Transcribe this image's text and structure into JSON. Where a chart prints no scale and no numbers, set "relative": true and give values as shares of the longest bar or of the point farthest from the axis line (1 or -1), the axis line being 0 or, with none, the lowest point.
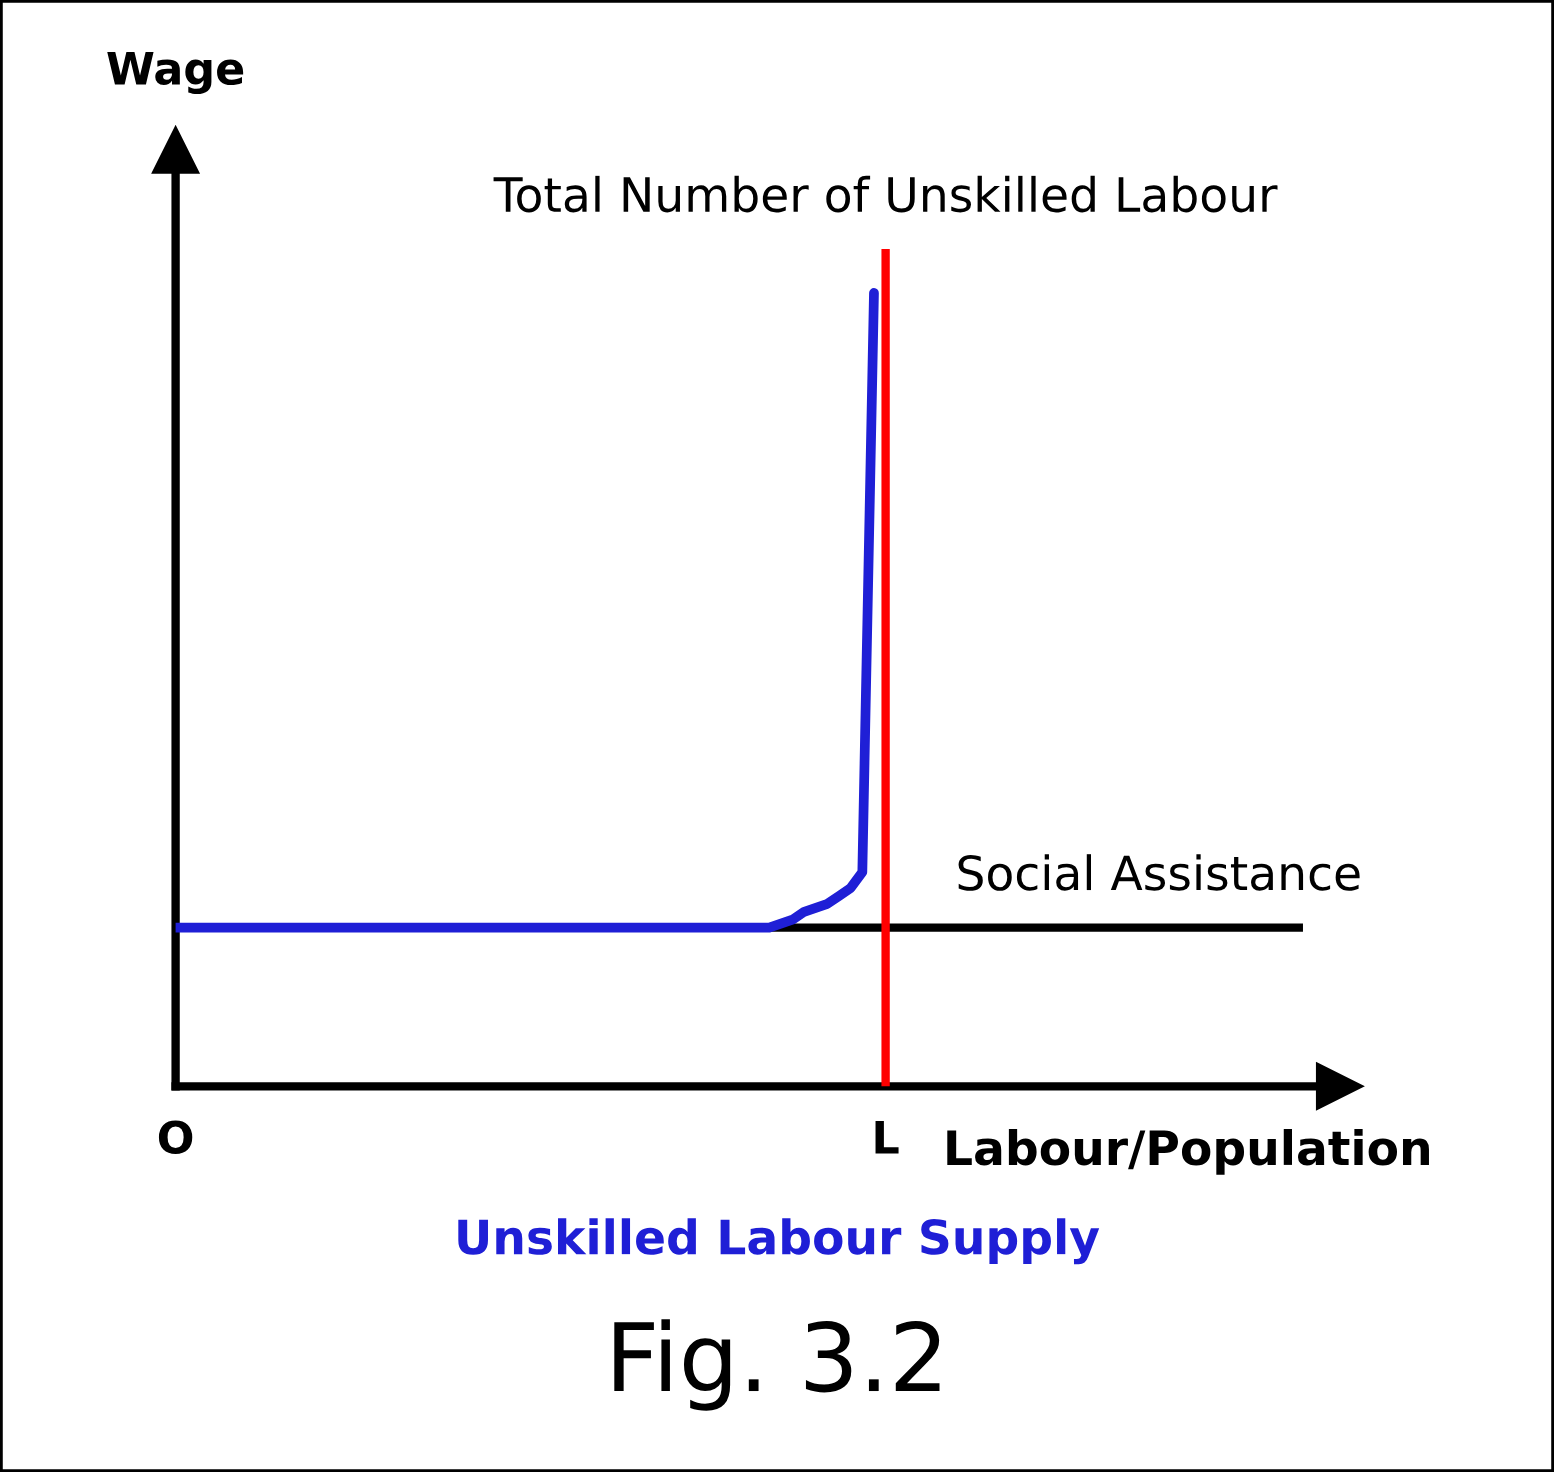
{
  "chart_data": {
    "type": "line",
    "relative": true,
    "title": "Fig. 3.2",
    "subtitle": "Unskilled Labour Supply",
    "xlabel": "Labour/Population",
    "ylabel": "Wage",
    "categories": [
      "O",
      null,
      null,
      null,
      null,
      null,
      null,
      null,
      null,
      null,
      null,
      null,
      null,
      null,
      null,
      null,
      null,
      null,
      null,
      null,
      null,
      null,
      null,
      null,
      null,
      null,
      null,
      null,
      null,
      null,
      null,
      null,
      null,
      null,
      null,
      null,
      null,
      null,
      null,
      null,
      null,
      null,
      null,
      null,
      null,
      null,
      null,
      null,
      null,
      null,
      null,
      null,
      null,
      null,
      null,
      null,
      null,
      null,
      null,
      null,
      null,
      "L",
      null,
      null,
      null,
      null,
      null,
      null,
      null,
      null,
      null,
      null,
      null,
      null,
      null,
      null,
      null,
      null,
      null,
      null,
      null,
      null,
      null,
      null,
      null,
      null,
      null,
      null,
      null,
      null,
      null,
      null,
      null,
      null,
      null,
      null,
      null,
      null,
      null,
      null,
      null
    ],
    "series": [
      {
        "color": "#1f1fd6",
        "values": [
          0.2,
          0.2,
          0.2,
          0.2,
          0.2,
          0.2,
          0.2,
          0.2,
          0.2,
          0.2,
          0.2,
          0.2,
          0.2,
          0.2,
          0.2,
          0.2,
          0.2,
          0.2,
          0.2,
          0.2,
          0.2,
          0.2,
          0.2,
          0.2,
          0.2,
          0.2,
          0.2,
          0.2,
          0.2,
          0.2,
          0.2,
          0.2,
          0.2,
          0.2,
          0.2,
          0.2,
          0.2,
          0.2,
          0.2,
          0.2,
          0.2,
          0.2,
          0.2,
          0.2,
          0.2,
          0.2,
          0.2,
          0.2,
          0.2,
          0.2,
          0.2,
          0.2,
          0.205,
          0.21,
          0.22,
          0.225,
          0.23,
          0.24,
          0.25,
          0.27,
          1.0,
          null,
          null,
          null,
          null,
          null,
          null,
          null,
          null,
          null,
          null,
          null,
          null,
          null,
          null,
          null,
          null,
          null,
          null,
          null,
          null,
          null,
          null,
          null,
          null,
          null,
          null,
          null,
          null,
          null,
          null,
          null,
          null,
          null,
          null,
          null,
          null,
          null,
          null,
          null,
          null
        ]
      }
    ],
    "ref_lines": [
      {
        "axis": "y",
        "value": 0.2,
        "label": "Social Assistance",
        "color": "#000000"
      },
      {
        "axis": "x",
        "value": "L",
        "label": "Total Number of Unskilled Labour",
        "color": "#ff0000"
      }
    ],
    "legend": false,
    "marker": "none",
    "line_style": "solid"
  }
}
